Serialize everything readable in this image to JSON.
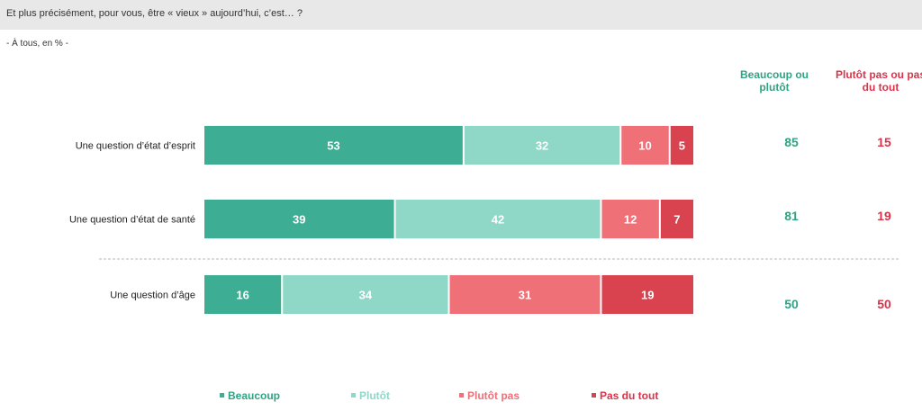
{
  "header": {
    "question": "Et plus précisément, pour vous, être « vieux » aujourd’hui, c’est… ?",
    "base": "- À tous, en % -"
  },
  "columns": {
    "positive": "Beaucoup ou plutôt",
    "negative": "Plutôt pas ou pas du tout"
  },
  "colors": {
    "beaucoup": "#3dae93",
    "plutot": "#8fd8c7",
    "plutot_pas": "#f07078",
    "pas_du_tout": "#d94350",
    "positive_text": "#2fa383",
    "negative_text": "#d9334a"
  },
  "chart_data": {
    "type": "bar",
    "orientation": "horizontal",
    "stacked": true,
    "categories": [
      "Une question d’état d’esprit",
      "Une question d’état de santé",
      "Une question d’âge"
    ],
    "series": [
      {
        "name": "Beaucoup",
        "values": [
          53,
          39,
          16
        ]
      },
      {
        "name": "Plutôt",
        "values": [
          32,
          42,
          34
        ]
      },
      {
        "name": "Plutôt pas",
        "values": [
          10,
          12,
          31
        ]
      },
      {
        "name": "Pas du tout",
        "values": [
          5,
          7,
          19
        ]
      }
    ],
    "totals_positive": [
      85,
      81,
      50
    ],
    "totals_negative": [
      15,
      19,
      50
    ],
    "legend_position": "bottom",
    "xlim": [
      0,
      100
    ]
  }
}
